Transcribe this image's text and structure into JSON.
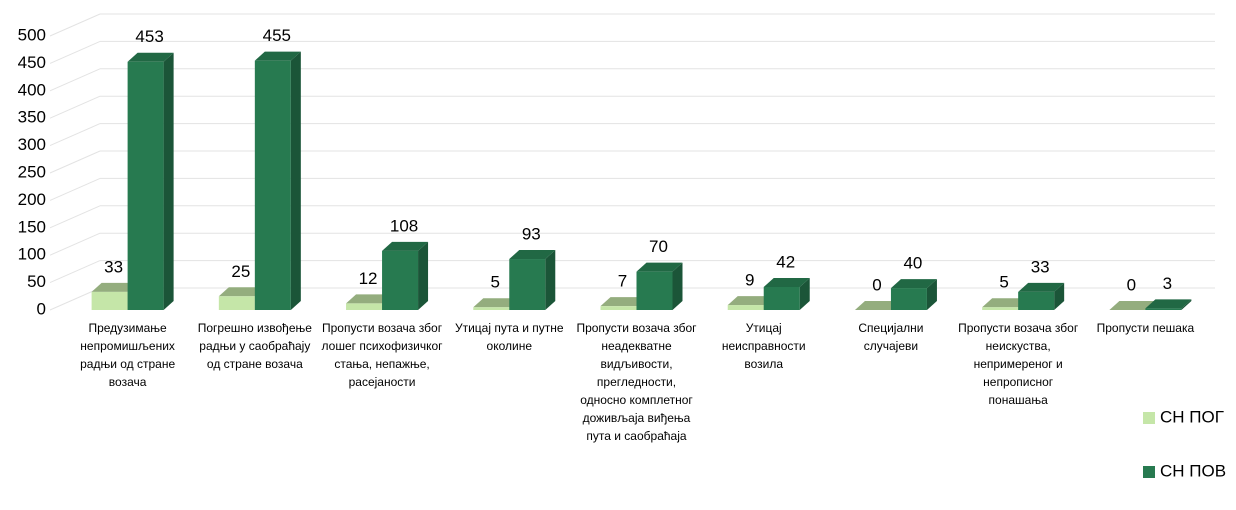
{
  "chart_data": {
    "type": "bar3d",
    "categories": [
      "Предузимање непромишљених радњи од стране возача",
      "Погрешно извођење радњи у саобраћају од стране возача",
      "Пропусти возача због лошег психофизичког стања, непажње, расејаности",
      "Утицај пута и путне околине",
      "Пропусти возача због неадекватне видљивости, прегледности, односно комплетног доживљаја виђења пута и саобраћаја",
      "Утицај неисправности возила",
      "Специјални случајеви",
      "Пропусти возача због неискуства, непримереног и непрописног понашања",
      "Пропусти пешака"
    ],
    "series": [
      {
        "name": "СН ПОГ",
        "color": "#c5e6a8",
        "values": [
          33,
          25,
          12,
          5,
          7,
          9,
          0,
          5,
          0
        ]
      },
      {
        "name": "СН ПОВ",
        "color": "#277a50",
        "values": [
          453,
          455,
          108,
          93,
          70,
          42,
          40,
          33,
          3
        ]
      }
    ],
    "ylim": [
      0,
      500
    ],
    "yticks": [
      0,
      50,
      100,
      150,
      200,
      250,
      300,
      350,
      400,
      450,
      500
    ],
    "grid": true,
    "legend": "right"
  }
}
